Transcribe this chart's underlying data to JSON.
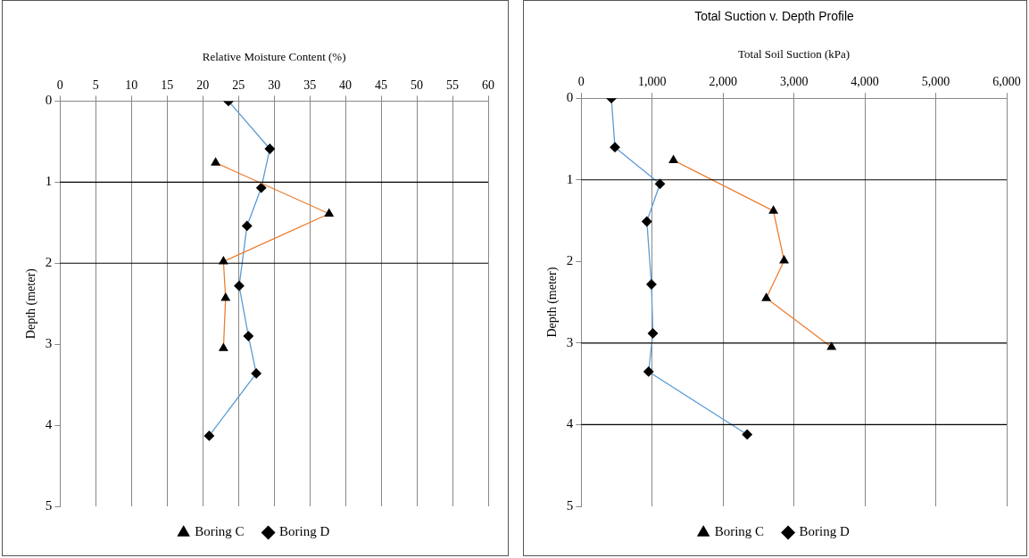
{
  "chart_data": [
    {
      "type": "line",
      "xlabel": "Relative Moisture Content (%)",
      "ylabel": "Depth (meter)",
      "xlim": [
        0,
        60
      ],
      "xticks": [
        0,
        5,
        10,
        15,
        20,
        25,
        30,
        35,
        40,
        45,
        50,
        55,
        60
      ],
      "ylim": [
        5,
        0
      ],
      "yticks": [
        0,
        1,
        2,
        3,
        4,
        5
      ],
      "grid": "x",
      "legend": "bottom",
      "ref_lines": [
        {
          "axis": "y",
          "value": 1,
          "color": "#000000"
        },
        {
          "axis": "y",
          "value": 2,
          "color": "#000000"
        }
      ],
      "series": [
        {
          "name": "Boring C",
          "color": "#ed7d31",
          "marker": "triangle",
          "x": [
            21.8,
            37.7,
            22.9,
            23.2,
            22.9
          ],
          "values": [
            0.76,
            1.39,
            1.98,
            2.43,
            3.05
          ]
        },
        {
          "name": "Boring D",
          "color": "#5b9bd5",
          "marker": "diamond",
          "x": [
            23.6,
            29.4,
            28.2,
            26.2,
            25.1,
            26.4,
            27.5,
            20.9
          ],
          "values": [
            0,
            0.59,
            1.07,
            1.54,
            2.28,
            2.9,
            3.36,
            4.13
          ]
        }
      ]
    },
    {
      "type": "line",
      "title": "Total Suction v. Depth Profile",
      "xlabel": "Total Soil Suction (kPa)",
      "ylabel": "Depth (meter)",
      "xlim": [
        0,
        6000
      ],
      "xticks": [
        {
          "value": 0,
          "label": "0"
        },
        {
          "value": 1000,
          "label": "1,000"
        },
        {
          "value": 2000,
          "label": "2,000"
        },
        {
          "value": 3000,
          "label": "3,000"
        },
        {
          "value": 4000,
          "label": "4,000"
        },
        {
          "value": 5000,
          "label": "5,000"
        },
        {
          "value": 6000,
          "label": "6,000"
        }
      ],
      "ylim": [
        5,
        0
      ],
      "yticks": [
        0,
        1,
        2,
        3,
        4,
        5
      ],
      "grid": "x",
      "legend": "bottom",
      "ref_lines": [
        {
          "axis": "y",
          "value": 1,
          "color": "#000000"
        },
        {
          "axis": "y",
          "value": 3,
          "color": "#000000"
        },
        {
          "axis": "y",
          "value": 4,
          "color": "#000000"
        }
      ],
      "series": [
        {
          "name": "Boring C",
          "color": "#ed7d31",
          "marker": "triangle",
          "x": [
            1300,
            2710,
            2860,
            2610,
            3530
          ],
          "values": [
            0.76,
            1.38,
            1.99,
            2.45,
            3.05
          ]
        },
        {
          "name": "Boring D",
          "color": "#5b9bd5",
          "marker": "diamond",
          "x": [
            425,
            475,
            1110,
            925,
            990,
            1010,
            950,
            2340
          ],
          "values": [
            0,
            0.6,
            1.05,
            1.51,
            2.28,
            2.88,
            3.35,
            4.12
          ]
        }
      ]
    }
  ]
}
